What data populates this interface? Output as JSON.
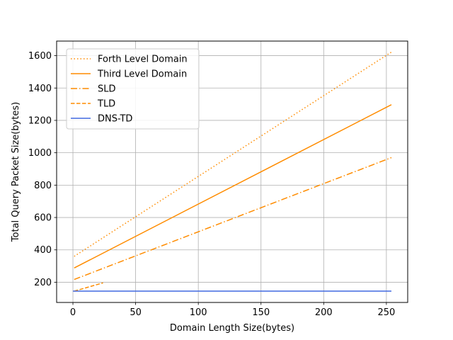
{
  "chart_data": {
    "type": "line",
    "title": "",
    "xlabel": "Domain Length Size(bytes)",
    "ylabel": "Total Query Packet Size(bytes)",
    "xlim": [
      -13,
      267
    ],
    "ylim": [
      75,
      1690
    ],
    "xticks": [
      0,
      50,
      100,
      150,
      200,
      250
    ],
    "yticks": [
      200,
      400,
      600,
      800,
      1000,
      1200,
      1400,
      1600
    ],
    "grid": true,
    "legend_position": "top-left",
    "series": [
      {
        "name": "Forth Level Domain",
        "color": "#ff8c00",
        "style": "dotted",
        "x": [
          1,
          254
        ],
        "y": [
          360,
          1622
        ]
      },
      {
        "name": "Third Level Domain",
        "color": "#ff8c00",
        "style": "solid",
        "x": [
          1,
          254
        ],
        "y": [
          288,
          1297
        ]
      },
      {
        "name": "SLD",
        "color": "#ff8c00",
        "style": "dashdot",
        "x": [
          1,
          254
        ],
        "y": [
          217,
          970
        ]
      },
      {
        "name": "TLD",
        "color": "#ff8c00",
        "style": "dashed",
        "x": [
          1,
          24
        ],
        "y": [
          145,
          196
        ]
      },
      {
        "name": "DNS-TD",
        "color": "#4169e1",
        "style": "solid",
        "x": [
          0,
          254
        ],
        "y": [
          145,
          145
        ]
      }
    ]
  }
}
